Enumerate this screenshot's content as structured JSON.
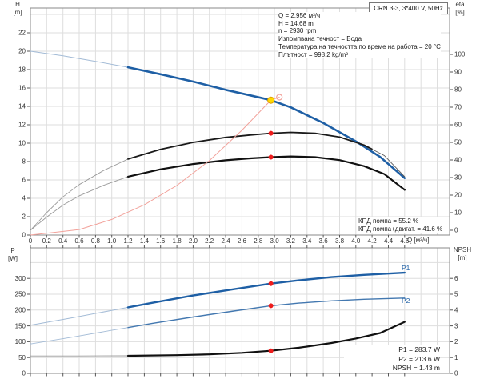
{
  "header": {
    "pump_model_box": "CRN 3-3, 3*400 V, 50Hz"
  },
  "info_block": [
    "Q = 2.956 м³/ч",
    "H = 14.68 m",
    "n = 2930 rpm",
    "Изпомпвана течност = Вода",
    "Температура на течността по време на работа = 20 °C",
    "Плътност = 998.2 kg/m³"
  ],
  "efficiency_block": [
    "КПД помпа = 55.2 %",
    "КПД помпа+двигат. = 41.6 %"
  ],
  "result_block": [
    "P1 = 283.7 W",
    "P2 = 213.6 W",
    "NPSH = 1.43 m"
  ],
  "axis_labels": {
    "h_name": "H",
    "h_unit": "[m]",
    "eta_name": "eta",
    "eta_unit": "[%]",
    "q_label": "Q [м³/ч]",
    "p_name": "P",
    "p_unit": "[W]",
    "npsh_name": "NPSH",
    "npsh_unit": "[m]"
  },
  "curve_labels": {
    "p1": "P1",
    "p2": "P2"
  },
  "chart_data": [
    {
      "type": "line",
      "name": "pump-performance-curves",
      "xlabel": "Q [м³/ч]",
      "ylabel_left": "H [m]",
      "ylabel_right": "eta [%]",
      "xlim": [
        0,
        5.15
      ],
      "ylim_left": [
        0,
        24.7
      ],
      "ylim_right": [
        0,
        126
      ],
      "x_ticks": [
        0,
        0.2,
        0.4,
        0.6,
        0.8,
        1.0,
        1.2,
        1.4,
        1.6,
        1.8,
        2.0,
        2.2,
        2.4,
        2.6,
        2.8,
        3.0,
        3.2,
        3.4,
        3.6,
        3.8,
        4.0,
        4.2,
        4.4,
        4.6
      ],
      "x_tick_labels": [
        "0",
        "0.2",
        "0.4",
        "0.6",
        "0.8",
        "1.0",
        "1.2",
        "1.4",
        "1.6",
        "1.8",
        "2.0",
        "2.2",
        "2.4",
        "2.6",
        "2.8",
        "3.0",
        "3.2",
        "3.4",
        "3.6",
        "3.8",
        "4.0",
        "4.2",
        "4.4",
        "4.6"
      ],
      "y_left_ticks": [
        0,
        2,
        4,
        6,
        8,
        10,
        12,
        14,
        16,
        18,
        20,
        22
      ],
      "y_right_ticks": [
        0,
        10,
        20,
        30,
        40,
        50,
        60,
        70,
        80,
        90,
        100
      ],
      "grid": true,
      "series": [
        {
          "name": "H-Q curve",
          "axis": "left",
          "points": [
            [
              0,
              20.0
            ],
            [
              0.4,
              19.5
            ],
            [
              0.8,
              18.9
            ],
            [
              1.2,
              18.25
            ],
            [
              1.6,
              17.5
            ],
            [
              2.0,
              16.7
            ],
            [
              2.4,
              15.8
            ],
            [
              2.7,
              15.2
            ],
            [
              2.956,
              14.68
            ],
            [
              3.2,
              13.9
            ],
            [
              3.6,
              12.2
            ],
            [
              4.0,
              10.2
            ],
            [
              4.3,
              8.5
            ],
            [
              4.6,
              6.2
            ]
          ],
          "segments": [
            {
              "from": 0,
              "to": 1.2,
              "width": 1,
              "color": "#a3bbd6"
            },
            {
              "from": 1.2,
              "to": 4.6,
              "width": 2.6,
              "color": "#1e5fa5"
            }
          ]
        },
        {
          "name": "eta pump",
          "axis": "right",
          "points": [
            [
              0,
              0
            ],
            [
              0.2,
              10
            ],
            [
              0.4,
              19
            ],
            [
              0.6,
              26
            ],
            [
              0.9,
              34
            ],
            [
              1.2,
              40.5
            ],
            [
              1.6,
              46
            ],
            [
              2.0,
              50
            ],
            [
              2.4,
              52.8
            ],
            [
              2.7,
              54.2
            ],
            [
              2.956,
              55.2
            ],
            [
              3.2,
              55.7
            ],
            [
              3.5,
              55.2
            ],
            [
              3.8,
              53
            ],
            [
              4.1,
              48.5
            ],
            [
              4.35,
              42.5
            ],
            [
              4.6,
              30.5
            ]
          ],
          "segments": [
            {
              "from": 0,
              "to": 1.2,
              "width": 0.9,
              "color": "#9a9a9a"
            },
            {
              "from": 1.2,
              "to": 4.2,
              "width": 1.8,
              "color": "#1a1a1a"
            },
            {
              "from": 4.2,
              "to": 4.6,
              "width": 0.9,
              "color": "#555555"
            }
          ]
        },
        {
          "name": "eta pump+motor",
          "axis": "right",
          "points": [
            [
              0,
              0
            ],
            [
              0.2,
              7.5
            ],
            [
              0.4,
              14.3
            ],
            [
              0.6,
              19.6
            ],
            [
              0.9,
              25.6
            ],
            [
              1.2,
              30.5
            ],
            [
              1.6,
              34.7
            ],
            [
              2.0,
              37.7
            ],
            [
              2.4,
              39.8
            ],
            [
              2.7,
              40.9
            ],
            [
              2.956,
              41.6
            ],
            [
              3.2,
              42.0
            ],
            [
              3.5,
              41.6
            ],
            [
              3.8,
              39.9
            ],
            [
              4.1,
              36.5
            ],
            [
              4.35,
              32.0
            ],
            [
              4.6,
              23.0
            ]
          ],
          "segments": [
            {
              "from": 0,
              "to": 1.2,
              "width": 0.9,
              "color": "#9a9a9a"
            },
            {
              "from": 1.2,
              "to": 4.6,
              "width": 2.2,
              "color": "#111111"
            }
          ]
        },
        {
          "name": "system curve",
          "axis": "left",
          "points": [
            [
              0,
              0
            ],
            [
              0.6,
              0.6
            ],
            [
              1.0,
              1.7
            ],
            [
              1.4,
              3.3
            ],
            [
              1.8,
              5.4
            ],
            [
              2.2,
              8.1
            ],
            [
              2.6,
              11.4
            ],
            [
              2.956,
              14.68
            ],
            [
              3.06,
              15.0
            ]
          ],
          "segments": [
            {
              "from": 0,
              "to": 3.06,
              "width": 1,
              "color": "#f2a29b"
            }
          ]
        }
      ],
      "markers": [
        {
          "name": "duty-point",
          "shape": "filled",
          "axis": "left",
          "x": 2.956,
          "y": 14.68,
          "r": 4,
          "fill": "#ffd900",
          "stroke": "#df9e00",
          "interactable": true
        },
        {
          "name": "requested-duty-point",
          "shape": "open",
          "axis": "left",
          "x": 3.06,
          "y": 15.0,
          "r": 3.5,
          "fill": "none",
          "stroke": "#f2a29b",
          "interactable": false
        },
        {
          "name": "eta-pump-point",
          "shape": "filled",
          "axis": "right",
          "x": 2.956,
          "y": 55.2,
          "r": 3,
          "fill": "#ee1c1c",
          "stroke": "none",
          "interactable": false
        },
        {
          "name": "eta-pump-motor-point",
          "shape": "filled",
          "axis": "right",
          "x": 2.956,
          "y": 41.6,
          "r": 3,
          "fill": "#ee1c1c",
          "stroke": "none",
          "interactable": false
        }
      ]
    },
    {
      "type": "line",
      "name": "power-and-npsh-curves",
      "xlabel": "",
      "ylabel_left": "P [W]",
      "ylabel_right": "NPSH [m]",
      "xlim": [
        0,
        5.15
      ],
      "ylim_left": [
        0,
        396
      ],
      "ylim_right": [
        0,
        7.9
      ],
      "x_ticks": [
        0,
        0.2,
        0.4,
        0.6,
        0.8,
        1.0,
        1.2,
        1.4,
        1.6,
        1.8,
        2.0,
        2.2,
        2.4,
        2.6,
        2.8,
        3.0,
        3.2,
        3.4,
        3.6,
        3.8,
        4.0,
        4.2,
        4.4,
        4.6
      ],
      "y_left_ticks": [
        0,
        50,
        100,
        150,
        200,
        250,
        300
      ],
      "y_right_ticks": [
        0,
        1,
        2,
        3,
        4,
        5,
        6
      ],
      "grid": true,
      "series": [
        {
          "name": "P1 power input",
          "axis": "left",
          "points": [
            [
              0,
              152
            ],
            [
              0.5,
              175
            ],
            [
              1.0,
              199
            ],
            [
              1.5,
              223
            ],
            [
              2.0,
              246
            ],
            [
              2.5,
              266
            ],
            [
              2.956,
              283.7
            ],
            [
              3.3,
              294
            ],
            [
              3.7,
              304
            ],
            [
              4.1,
              311
            ],
            [
              4.6,
              318
            ]
          ],
          "segments": [
            {
              "from": 0,
              "to": 1.2,
              "width": 1,
              "color": "#a3bbd6"
            },
            {
              "from": 1.2,
              "to": 4.6,
              "width": 2.4,
              "color": "#1e5fa5"
            }
          ]
        },
        {
          "name": "P2 shaft power",
          "axis": "left",
          "points": [
            [
              0,
              93
            ],
            [
              0.5,
              114
            ],
            [
              1.0,
              136
            ],
            [
              1.5,
              158
            ],
            [
              2.0,
              178
            ],
            [
              2.5,
              197
            ],
            [
              2.956,
              213.6
            ],
            [
              3.3,
              222
            ],
            [
              3.7,
              229
            ],
            [
              4.1,
              234
            ],
            [
              4.6,
              238
            ]
          ],
          "segments": [
            {
              "from": 0,
              "to": 1.2,
              "width": 0.9,
              "color": "#a3bbd6"
            },
            {
              "from": 1.2,
              "to": 4.6,
              "width": 1.4,
              "color": "#4378b0"
            }
          ]
        },
        {
          "name": "NPSH",
          "axis": "right",
          "points": [
            [
              0,
              1.1
            ],
            [
              0.6,
              1.1
            ],
            [
              1.2,
              1.11
            ],
            [
              1.8,
              1.15
            ],
            [
              2.2,
              1.2
            ],
            [
              2.6,
              1.3
            ],
            [
              2.956,
              1.43
            ],
            [
              3.3,
              1.62
            ],
            [
              3.7,
              1.92
            ],
            [
              4.0,
              2.2
            ],
            [
              4.3,
              2.55
            ],
            [
              4.6,
              3.25
            ]
          ],
          "segments": [
            {
              "from": 0,
              "to": 1.2,
              "width": 0.9,
              "color": "#999999"
            },
            {
              "from": 1.2,
              "to": 4.6,
              "width": 2.2,
              "color": "#111111"
            }
          ]
        }
      ],
      "markers": [
        {
          "name": "p1-point",
          "shape": "filled",
          "axis": "left",
          "x": 2.956,
          "y": 283.7,
          "r": 3,
          "fill": "#ee1c1c",
          "stroke": "none",
          "interactable": false
        },
        {
          "name": "p2-point",
          "shape": "filled",
          "axis": "left",
          "x": 2.956,
          "y": 213.6,
          "r": 3,
          "fill": "#ee1c1c",
          "stroke": "none",
          "interactable": false
        },
        {
          "name": "npsh-point",
          "shape": "filled",
          "axis": "right",
          "x": 2.956,
          "y": 1.43,
          "r": 3,
          "fill": "#ee1c1c",
          "stroke": "none",
          "interactable": false
        }
      ]
    }
  ]
}
